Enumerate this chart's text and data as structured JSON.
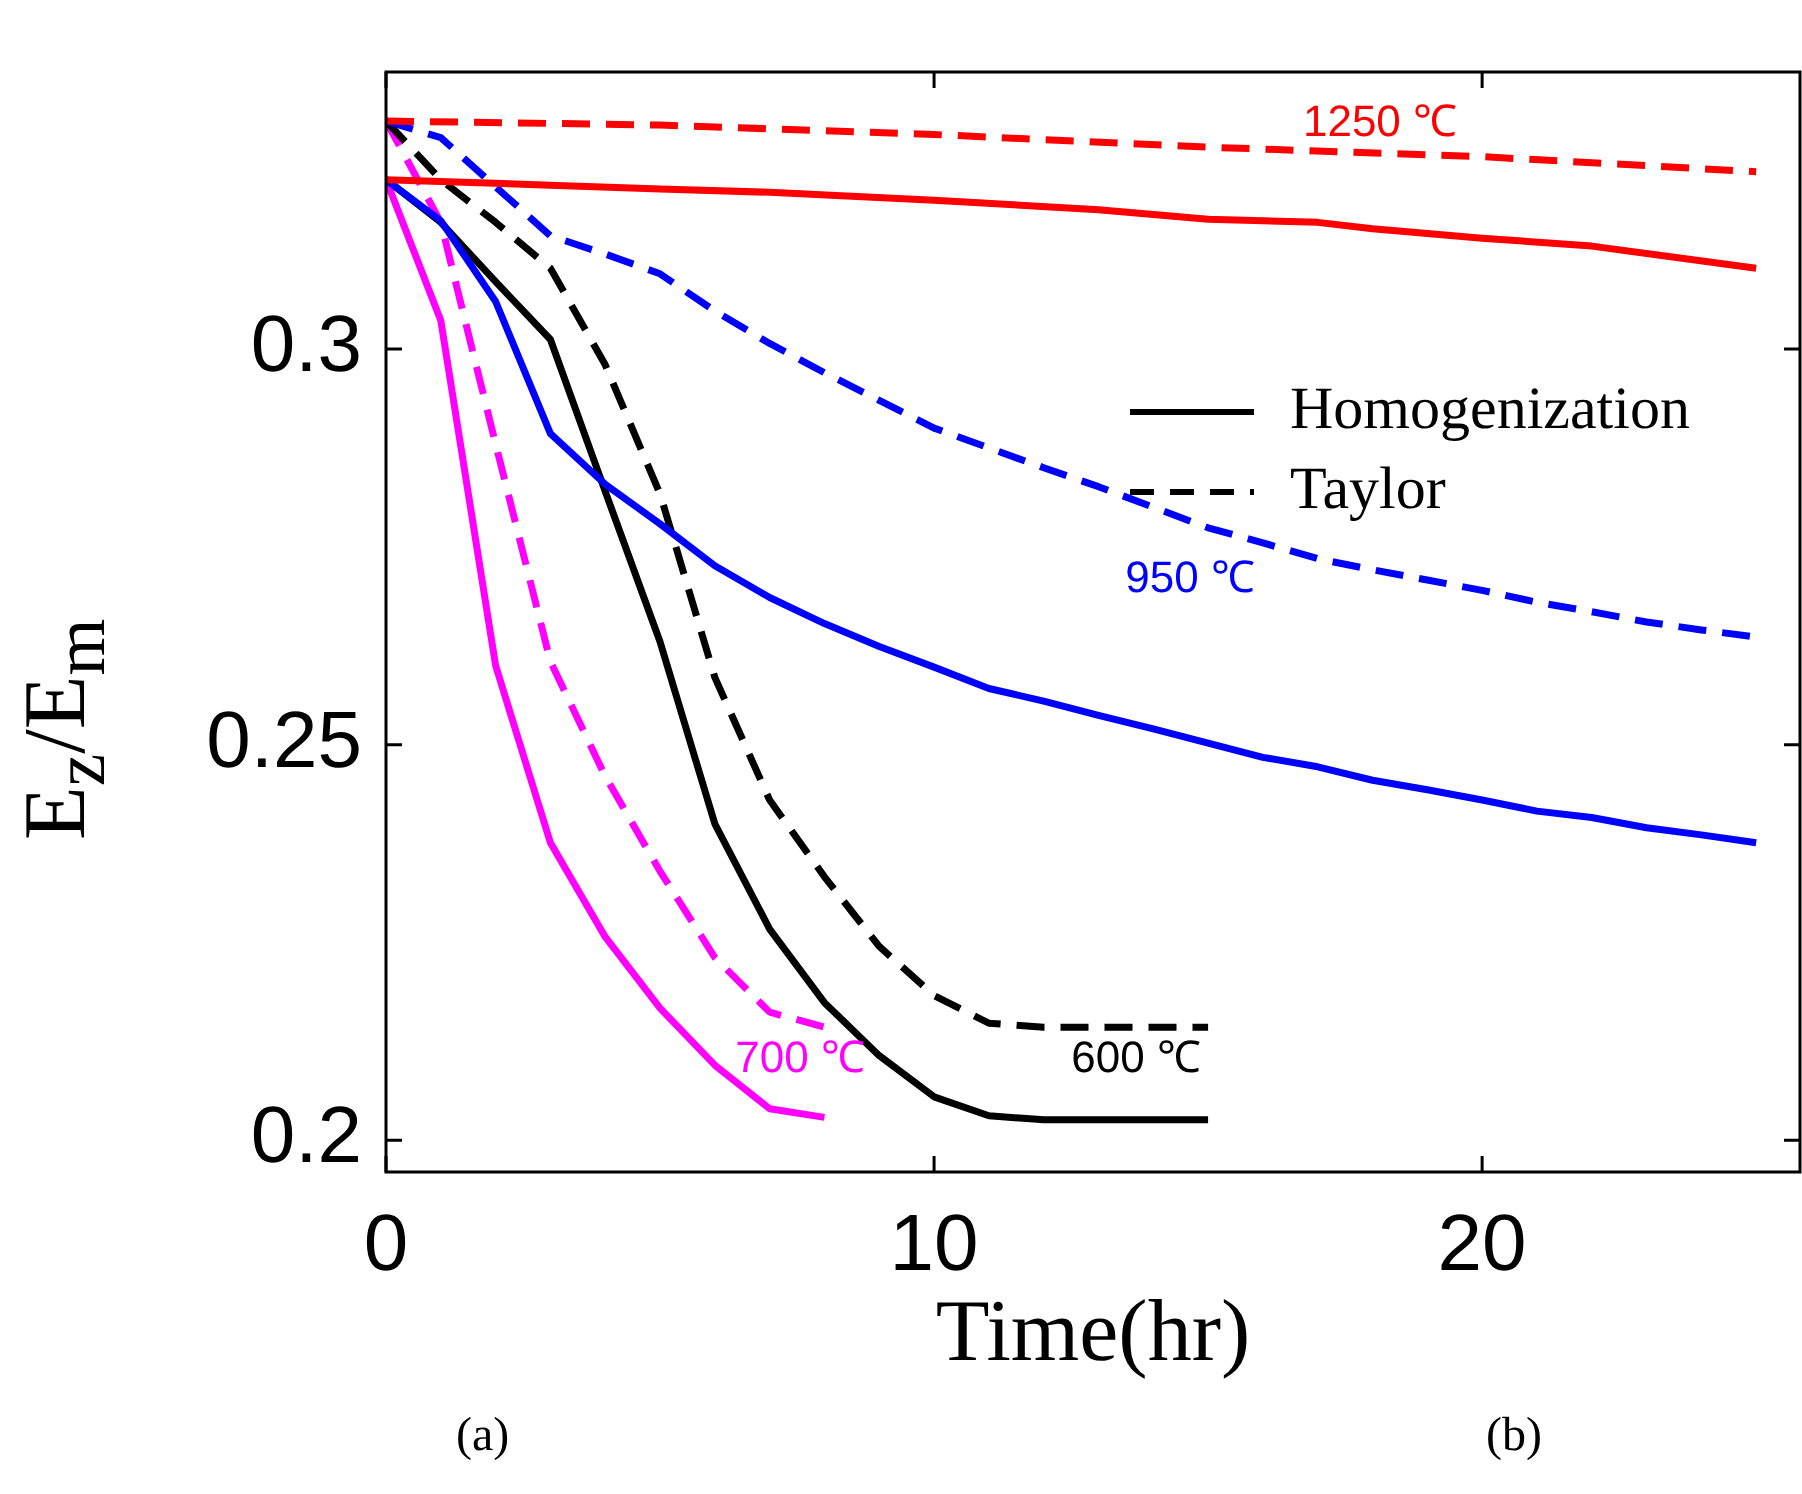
{
  "chart_data": {
    "type": "line",
    "xlabel": "Time(hr)",
    "ylabel": "E$_{z}$/E$_{m}$",
    "xlim": [
      0,
      25.8
    ],
    "ylim": [
      0.196,
      0.335
    ],
    "xticks": [
      0,
      10,
      20
    ],
    "yticks": [
      0.2,
      0.25,
      0.3
    ],
    "grid": false,
    "legend": "top right",
    "marker": "none",
    "series": [
      {
        "color": "#ff0000",
        "line_style": "solid",
        "x": [
          0,
          3,
          5,
          7,
          10,
          13,
          15,
          17,
          18,
          20,
          22,
          25
        ],
        "values": [
          0.3214,
          0.3207,
          0.3202,
          0.3198,
          0.3188,
          0.3176,
          0.3164,
          0.316,
          0.3152,
          0.314,
          0.313,
          0.3102
        ]
      },
      {
        "color": "#ff0000",
        "line_style": "dashed",
        "x": [
          0,
          5,
          10,
          15,
          20,
          25
        ],
        "values": [
          0.3288,
          0.3283,
          0.3271,
          0.3255,
          0.3243,
          0.3224
        ]
      },
      {
        "color": "#0000ff",
        "line_style": "solid",
        "x": [
          0,
          1,
          2,
          3,
          4,
          5,
          6,
          7,
          8,
          9,
          10,
          11,
          12,
          13,
          14,
          15,
          16,
          17,
          18,
          19,
          20,
          21,
          22,
          23,
          24,
          25
        ],
        "values": [
          0.3214,
          0.3162,
          0.306,
          0.2893,
          0.2829,
          0.2779,
          0.2726,
          0.2686,
          0.2653,
          0.2624,
          0.2598,
          0.2571,
          0.2555,
          0.2537,
          0.252,
          0.2502,
          0.2484,
          0.2472,
          0.2455,
          0.2443,
          0.243,
          0.2416,
          0.2408,
          0.2395,
          0.2386,
          0.2376
        ]
      },
      {
        "color": "#0000ff",
        "line_style": "dashed",
        "x": [
          0,
          1,
          2,
          3,
          4,
          5,
          6,
          7,
          8,
          9,
          10,
          11,
          12,
          13,
          14,
          15,
          16,
          17,
          18,
          19,
          20,
          21,
          22,
          23,
          24,
          25
        ],
        "values": [
          0.3288,
          0.3267,
          0.3205,
          0.3143,
          0.312,
          0.3095,
          0.3048,
          0.3007,
          0.297,
          0.2935,
          0.29,
          0.2875,
          0.285,
          0.2826,
          0.28,
          0.2774,
          0.2755,
          0.2735,
          0.2721,
          0.2708,
          0.2695,
          0.268,
          0.2668,
          0.2655,
          0.2645,
          0.2636
        ]
      },
      {
        "name": "Homogenization",
        "color": "#000000",
        "line_style": "solid",
        "x": [
          0,
          1,
          2,
          3,
          4,
          5,
          6,
          7,
          8,
          9,
          10,
          11,
          12,
          13,
          14,
          15
        ],
        "values": [
          0.3214,
          0.316,
          0.3085,
          0.3012,
          0.282,
          0.263,
          0.24,
          0.2267,
          0.2174,
          0.2107,
          0.2055,
          0.2031,
          0.2026,
          0.2026,
          0.2026,
          0.2026
        ]
      },
      {
        "name": "Taylor",
        "color": "#000000",
        "line_style": "dashed",
        "x": [
          0,
          1,
          2,
          3,
          4,
          5,
          6,
          7,
          8,
          9,
          10,
          11,
          12,
          13,
          14,
          15
        ],
        "values": [
          0.3288,
          0.3214,
          0.316,
          0.3102,
          0.298,
          0.2817,
          0.2585,
          0.243,
          0.2333,
          0.2245,
          0.2183,
          0.2148,
          0.2143,
          0.2143,
          0.2143,
          0.2143
        ]
      },
      {
        "color": "#ff00ff",
        "line_style": "solid",
        "x": [
          0,
          1,
          2,
          3,
          4,
          5,
          6,
          7,
          8
        ],
        "values": [
          0.3214,
          0.3036,
          0.26,
          0.2376,
          0.2257,
          0.2167,
          0.2095,
          0.204,
          0.2029
        ]
      },
      {
        "color": "#ff00ff",
        "line_style": "dashed",
        "x": [
          0,
          1,
          2,
          3,
          4,
          5,
          6,
          7,
          8
        ],
        "values": [
          0.3288,
          0.316,
          0.288,
          0.2605,
          0.246,
          0.234,
          0.2231,
          0.2162,
          0.2143
        ]
      }
    ],
    "annotations": [
      "1250 ℃",
      "950 ℃",
      "700 ℃",
      "600 ℃",
      "(a)",
      "(b)"
    ]
  }
}
